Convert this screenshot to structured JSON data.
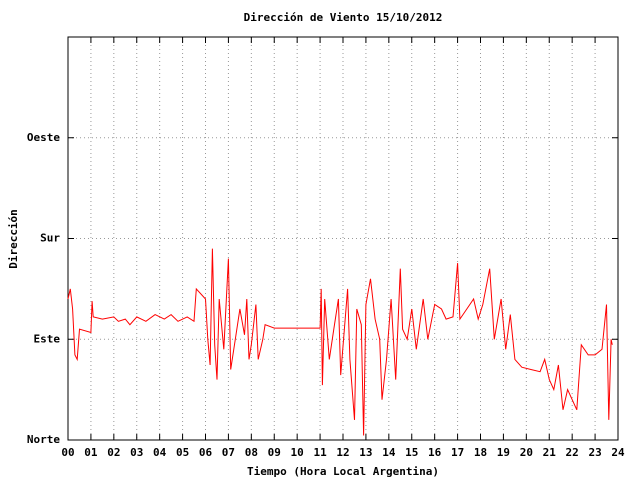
{
  "chart_data": {
    "type": "line",
    "title": "Dirección de Viento 15/10/2012",
    "xlabel": "Tiempo (Hora Local Argentina)",
    "ylabel": "Dirección",
    "color": "#ff0000",
    "grid": true,
    "xlim": [
      0,
      24
    ],
    "ylim": [
      0,
      360
    ],
    "xticks": [
      {
        "value": 0,
        "label": "00"
      },
      {
        "value": 1,
        "label": "01"
      },
      {
        "value": 2,
        "label": "02"
      },
      {
        "value": 3,
        "label": "03"
      },
      {
        "value": 4,
        "label": "04"
      },
      {
        "value": 5,
        "label": "05"
      },
      {
        "value": 6,
        "label": "06"
      },
      {
        "value": 7,
        "label": "07"
      },
      {
        "value": 8,
        "label": "08"
      },
      {
        "value": 9,
        "label": "09"
      },
      10,
      11,
      12,
      13,
      14,
      15,
      16,
      17,
      18,
      19,
      20,
      21,
      22,
      23,
      24
    ],
    "yticks": [
      {
        "value": 0,
        "label": "Norte"
      },
      {
        "value": 90,
        "label": "Este"
      },
      {
        "value": 180,
        "label": "Sur"
      },
      {
        "value": 270,
        "label": "Oeste"
      }
    ],
    "x": [
      0.0,
      0.1,
      0.2,
      0.3,
      0.4,
      0.5,
      1.0,
      1.05,
      1.1,
      1.5,
      2.0,
      2.2,
      2.5,
      2.7,
      3.0,
      3.4,
      3.8,
      4.2,
      4.5,
      4.8,
      5.2,
      5.5,
      5.6,
      6.0,
      6.1,
      6.2,
      6.3,
      6.4,
      6.5,
      6.6,
      6.8,
      7.0,
      7.1,
      7.3,
      7.5,
      7.7,
      7.8,
      7.9,
      8.0,
      8.2,
      8.3,
      8.5,
      8.6,
      9.0,
      11.0,
      11.05,
      11.1,
      11.2,
      11.4,
      11.6,
      11.8,
      11.9,
      12.2,
      12.3,
      12.5,
      12.6,
      12.8,
      12.9,
      13.0,
      13.2,
      13.4,
      13.6,
      13.7,
      13.9,
      14.1,
      14.3,
      14.5,
      14.6,
      14.8,
      15.0,
      15.2,
      15.5,
      15.7,
      16.0,
      16.3,
      16.5,
      16.8,
      17.0,
      17.1,
      17.4,
      17.7,
      17.9,
      18.1,
      18.4,
      18.6,
      18.9,
      19.1,
      19.3,
      19.5,
      19.8,
      20.2,
      20.6,
      20.8,
      21.0,
      21.2,
      21.4,
      21.6,
      21.8,
      22.0,
      22.2,
      22.4,
      22.7,
      23.0,
      23.3,
      23.5,
      23.6,
      23.7,
      23.75
    ],
    "values": [
      126,
      135,
      117,
      76,
      72,
      99,
      96,
      124,
      110,
      108,
      110,
      106,
      108,
      103,
      110,
      106,
      112,
      108,
      112,
      106,
      110,
      106,
      135,
      126,
      90,
      67,
      171,
      85,
      54,
      126,
      81,
      162,
      63,
      90,
      117,
      94,
      126,
      72,
      85,
      121,
      72,
      90,
      103,
      100,
      100,
      135,
      49,
      126,
      72,
      99,
      126,
      58,
      135,
      72,
      18,
      117,
      103,
      4,
      121,
      144,
      108,
      90,
      36,
      72,
      126,
      54,
      153,
      99,
      90,
      117,
      81,
      126,
      90,
      121,
      117,
      108,
      110,
      158,
      108,
      117,
      126,
      108,
      121,
      153,
      90,
      126,
      81,
      112,
      72,
      65,
      63,
      61,
      72,
      54,
      45,
      67,
      27,
      45,
      36,
      27,
      85,
      76,
      76,
      81,
      121,
      18,
      90,
      85
    ]
  }
}
